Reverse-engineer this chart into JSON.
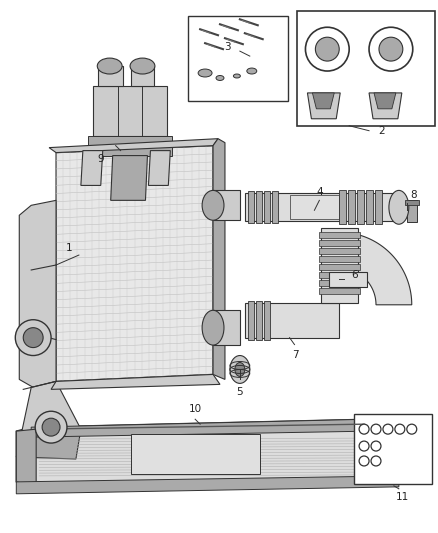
{
  "background_color": "#ffffff",
  "fig_width": 4.38,
  "fig_height": 5.33,
  "dpi": 100,
  "line_color": "#333333",
  "label_fontsize": 7.5,
  "gray1": "#cccccc",
  "gray2": "#aaaaaa",
  "gray3": "#888888",
  "gray4": "#dddddd",
  "gray5": "#e8e8e8"
}
